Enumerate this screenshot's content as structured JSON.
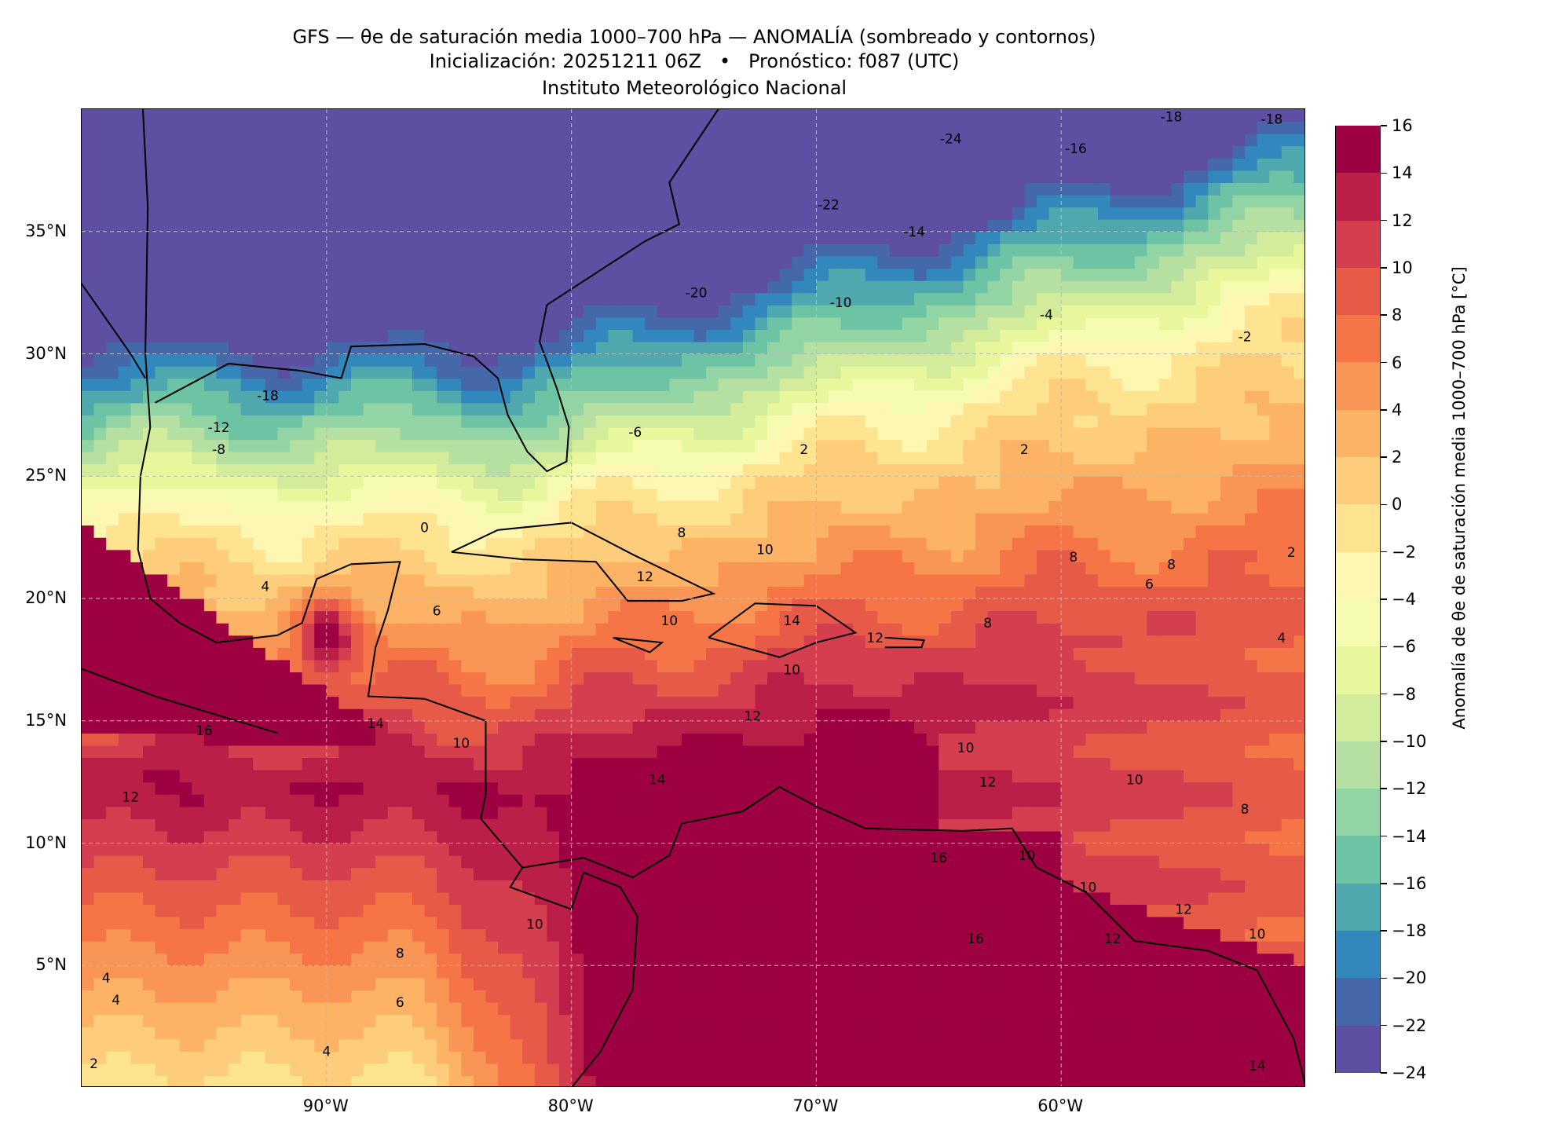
{
  "title": {
    "line1": "GFS — θe de saturación media 1000–700 hPa — ANOMALÍA (sombreado y contornos)",
    "line2": "Inicialización: 20251211 06Z   •   Pronóstico: f087 (UTC)",
    "line3": "Instituto Meteorológico Nacional"
  },
  "axes": {
    "lat_labels": [
      {
        "lat": 35,
        "label": "35°N"
      },
      {
        "lat": 30,
        "label": "30°N"
      },
      {
        "lat": 25,
        "label": "25°N"
      },
      {
        "lat": 20,
        "label": "20°N"
      },
      {
        "lat": 15,
        "label": "15°N"
      },
      {
        "lat": 10,
        "label": "10°N"
      },
      {
        "lat": 5,
        "label": "5°N"
      }
    ],
    "lon_labels": [
      {
        "lon": -90,
        "label": "90°W"
      },
      {
        "lon": -80,
        "label": "80°W"
      },
      {
        "lon": -70,
        "label": "70°W"
      },
      {
        "lon": -60,
        "label": "60°W"
      }
    ],
    "lon_range": [
      -100,
      -50
    ],
    "lat_range": [
      0,
      40
    ]
  },
  "colorbar": {
    "label": "Anomalía de θe de saturación media 1000–700 hPa [°C]",
    "levels": [
      -24,
      -22,
      -20,
      -18,
      -16,
      -14,
      -12,
      -10,
      -8,
      -6,
      -4,
      -2,
      0,
      2,
      4,
      6,
      8,
      10,
      12,
      14,
      16
    ],
    "tick_labels": [
      "−24",
      "−22",
      "−20",
      "−18",
      "−16",
      "−14",
      "−12",
      "−10",
      "−8",
      "−6",
      "−4",
      "−2",
      "0",
      "2",
      "4",
      "6",
      "8",
      "10",
      "12",
      "14",
      "16"
    ],
    "colors": [
      "#5e4fa2",
      "#4568ab",
      "#3288bd",
      "#50a8af",
      "#6cc4a5",
      "#93d4a4",
      "#b5e0a2",
      "#d3ec9b",
      "#e8f69c",
      "#f6fbb2",
      "#fef7b2",
      "#fee491",
      "#fdcd7b",
      "#fdb365",
      "#f99555",
      "#f57547",
      "#e75a47",
      "#d53e4f",
      "#bb1f48",
      "#9e0142"
    ]
  },
  "contour_labels": [
    {
      "lon": -64.5,
      "lat": 38.8,
      "text": "-24"
    },
    {
      "lon": -55.5,
      "lat": 39.7,
      "text": "-18"
    },
    {
      "lon": -51.4,
      "lat": 39.6,
      "text": "-18"
    },
    {
      "lon": -59.4,
      "lat": 38.4,
      "text": "-16"
    },
    {
      "lon": -69.5,
      "lat": 36.1,
      "text": "-22"
    },
    {
      "lon": -66.0,
      "lat": 35.0,
      "text": "-14"
    },
    {
      "lon": -74.9,
      "lat": 32.5,
      "text": "-20"
    },
    {
      "lon": -69.0,
      "lat": 32.1,
      "text": "-10"
    },
    {
      "lon": -60.6,
      "lat": 31.6,
      "text": "-4"
    },
    {
      "lon": -52.5,
      "lat": 30.7,
      "text": "-2"
    },
    {
      "lon": -92.4,
      "lat": 28.3,
      "text": "-18"
    },
    {
      "lon": -94.4,
      "lat": 27.0,
      "text": "-12"
    },
    {
      "lon": -94.4,
      "lat": 26.1,
      "text": "-8"
    },
    {
      "lon": -77.4,
      "lat": 26.8,
      "text": "-6"
    },
    {
      "lon": -70.5,
      "lat": 26.1,
      "text": "2"
    },
    {
      "lon": -61.5,
      "lat": 26.1,
      "text": "2"
    },
    {
      "lon": -86.0,
      "lat": 22.9,
      "text": "0"
    },
    {
      "lon": -75.5,
      "lat": 22.7,
      "text": "8"
    },
    {
      "lon": -72.1,
      "lat": 22.0,
      "text": "10"
    },
    {
      "lon": -59.5,
      "lat": 21.7,
      "text": "8"
    },
    {
      "lon": -55.5,
      "lat": 21.4,
      "text": "8"
    },
    {
      "lon": -56.4,
      "lat": 20.6,
      "text": "6"
    },
    {
      "lon": -50.6,
      "lat": 21.9,
      "text": "2"
    },
    {
      "lon": -92.5,
      "lat": 20.5,
      "text": "4"
    },
    {
      "lon": -85.5,
      "lat": 19.5,
      "text": "6"
    },
    {
      "lon": -77.0,
      "lat": 20.9,
      "text": "12"
    },
    {
      "lon": -76.0,
      "lat": 19.1,
      "text": "10"
    },
    {
      "lon": -71.0,
      "lat": 19.1,
      "text": "14"
    },
    {
      "lon": -67.6,
      "lat": 18.4,
      "text": "12"
    },
    {
      "lon": -63.0,
      "lat": 19.0,
      "text": "8"
    },
    {
      "lon": -51.0,
      "lat": 18.4,
      "text": "4"
    },
    {
      "lon": -71.0,
      "lat": 17.1,
      "text": "10"
    },
    {
      "lon": -95.0,
      "lat": 14.6,
      "text": "16"
    },
    {
      "lon": -88.0,
      "lat": 14.9,
      "text": "14"
    },
    {
      "lon": -84.5,
      "lat": 14.1,
      "text": "10"
    },
    {
      "lon": -72.6,
      "lat": 15.2,
      "text": "12"
    },
    {
      "lon": -63.9,
      "lat": 13.9,
      "text": "10"
    },
    {
      "lon": -63.0,
      "lat": 12.5,
      "text": "12"
    },
    {
      "lon": -57.0,
      "lat": 12.6,
      "text": "10"
    },
    {
      "lon": -76.5,
      "lat": 12.6,
      "text": "14"
    },
    {
      "lon": -98.0,
      "lat": 11.9,
      "text": "12"
    },
    {
      "lon": -52.5,
      "lat": 11.4,
      "text": "8"
    },
    {
      "lon": -65.0,
      "lat": 9.4,
      "text": "16"
    },
    {
      "lon": -61.4,
      "lat": 9.5,
      "text": "10"
    },
    {
      "lon": -58.9,
      "lat": 8.2,
      "text": "10"
    },
    {
      "lon": -55.0,
      "lat": 7.3,
      "text": "12"
    },
    {
      "lon": -81.5,
      "lat": 6.7,
      "text": "10"
    },
    {
      "lon": -57.9,
      "lat": 6.1,
      "text": "12"
    },
    {
      "lon": -52.0,
      "lat": 6.3,
      "text": "10"
    },
    {
      "lon": -63.5,
      "lat": 6.1,
      "text": "16"
    },
    {
      "lon": -87.0,
      "lat": 5.5,
      "text": "8"
    },
    {
      "lon": -99.0,
      "lat": 4.5,
      "text": "4"
    },
    {
      "lon": -98.6,
      "lat": 3.6,
      "text": "4"
    },
    {
      "lon": -87.0,
      "lat": 3.5,
      "text": "6"
    },
    {
      "lon": -90.0,
      "lat": 1.5,
      "text": "4"
    },
    {
      "lon": -99.5,
      "lat": 1.0,
      "text": "2"
    },
    {
      "lon": -52.0,
      "lat": 0.9,
      "text": "14"
    }
  ]
}
